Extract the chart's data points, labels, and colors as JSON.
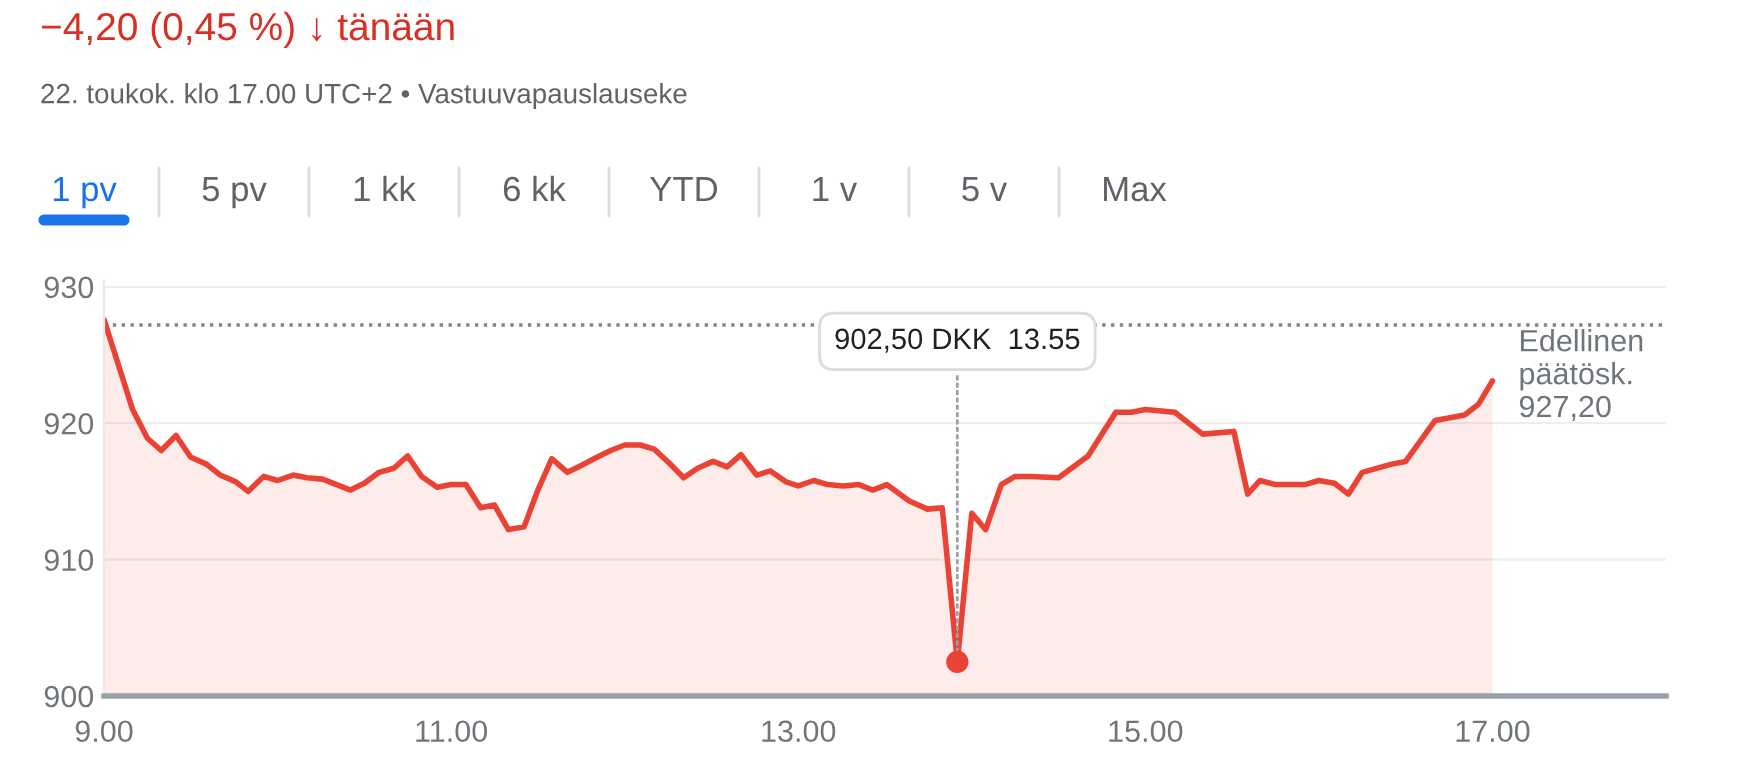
{
  "chart_data": {
    "type": "area",
    "title": "−4,20 (0,45 %) ↓ tänään",
    "subtitle": "22. toukok. klo 17.00 UTC+2 • Vastuuvapauslauseke",
    "x": [
      9.0,
      9.165,
      9.25,
      9.33,
      9.415,
      9.5,
      9.59,
      9.67,
      9.76,
      9.83,
      9.92,
      10.0,
      10.09,
      10.17,
      10.26,
      10.34,
      10.42,
      10.5,
      10.585,
      10.67,
      10.75,
      10.83,
      10.92,
      11.0,
      11.085,
      11.17,
      11.25,
      11.33,
      11.42,
      11.5,
      11.58,
      11.67,
      11.75,
      11.84,
      11.92,
      12.0,
      12.09,
      12.17,
      12.255,
      12.34,
      12.42,
      12.51,
      12.59,
      12.67,
      12.76,
      12.84,
      12.93,
      13.0,
      13.09,
      13.17,
      13.26,
      13.35,
      13.43,
      13.51,
      13.64,
      13.745,
      13.83,
      13.9167,
      14.0,
      14.08,
      14.17,
      14.25,
      14.34,
      14.5,
      14.67,
      14.83,
      14.92,
      15.0,
      15.17,
      15.33,
      15.51,
      15.59,
      15.66,
      15.75,
      15.92,
      16.0,
      16.09,
      16.17,
      16.25,
      16.42,
      16.5,
      16.59,
      16.67,
      16.84,
      16.92,
      17.0
    ],
    "series": [
      {
        "color": "#ea4335",
        "values": [
          927.6,
          921.0,
          918.9,
          918.0,
          919.1,
          917.5,
          917.0,
          916.2,
          915.7,
          915.0,
          916.1,
          915.8,
          916.2,
          916.0,
          915.9,
          915.5,
          915.1,
          915.6,
          916.4,
          916.7,
          917.6,
          916.1,
          915.3,
          915.5,
          915.5,
          913.8,
          914.0,
          912.2,
          912.4,
          915.1,
          917.4,
          916.4,
          916.9,
          917.5,
          918.0,
          918.4,
          918.4,
          918.1,
          917.1,
          916.0,
          916.7,
          917.2,
          916.8,
          917.7,
          916.2,
          916.5,
          915.7,
          915.4,
          915.8,
          915.5,
          915.4,
          915.5,
          915.1,
          915.5,
          914.3,
          913.7,
          913.8,
          902.5,
          913.4,
          912.2,
          915.5,
          916.1,
          916.1,
          916.0,
          917.6,
          920.8,
          920.8,
          921.0,
          920.8,
          919.2,
          919.4,
          914.8,
          915.8,
          915.5,
          915.5,
          915.8,
          915.6,
          914.8,
          916.4,
          917.0,
          917.2,
          918.8,
          920.2,
          920.6,
          921.4,
          923.1
        ]
      }
    ],
    "xlim": [
      9,
      18
    ],
    "ylim": [
      900,
      930.5
    ],
    "xticks": [
      {
        "value": 9,
        "label": "9.00"
      },
      {
        "value": 11,
        "label": "11.00"
      },
      {
        "value": 13,
        "label": "13.00"
      },
      {
        "value": 15,
        "label": "15.00"
      },
      {
        "value": 17,
        "label": "17.00"
      }
    ],
    "yticks": [
      900,
      910,
      920,
      930
    ],
    "grid": "y",
    "ref_lines": [
      {
        "axis": "y",
        "value": 927.2,
        "label": "Edellinen\npäätösk.\n927,20",
        "line_style": "dotted",
        "color": "#80868b"
      }
    ],
    "annotations": [
      {
        "text": "902,50 DKK  13.55",
        "x": 13.9167,
        "y": 902.5
      },
      "1 pv",
      "5 pv",
      "1 kk",
      "6 kk",
      "YTD",
      "1 v",
      "5 v",
      "Max"
    ]
  }
}
